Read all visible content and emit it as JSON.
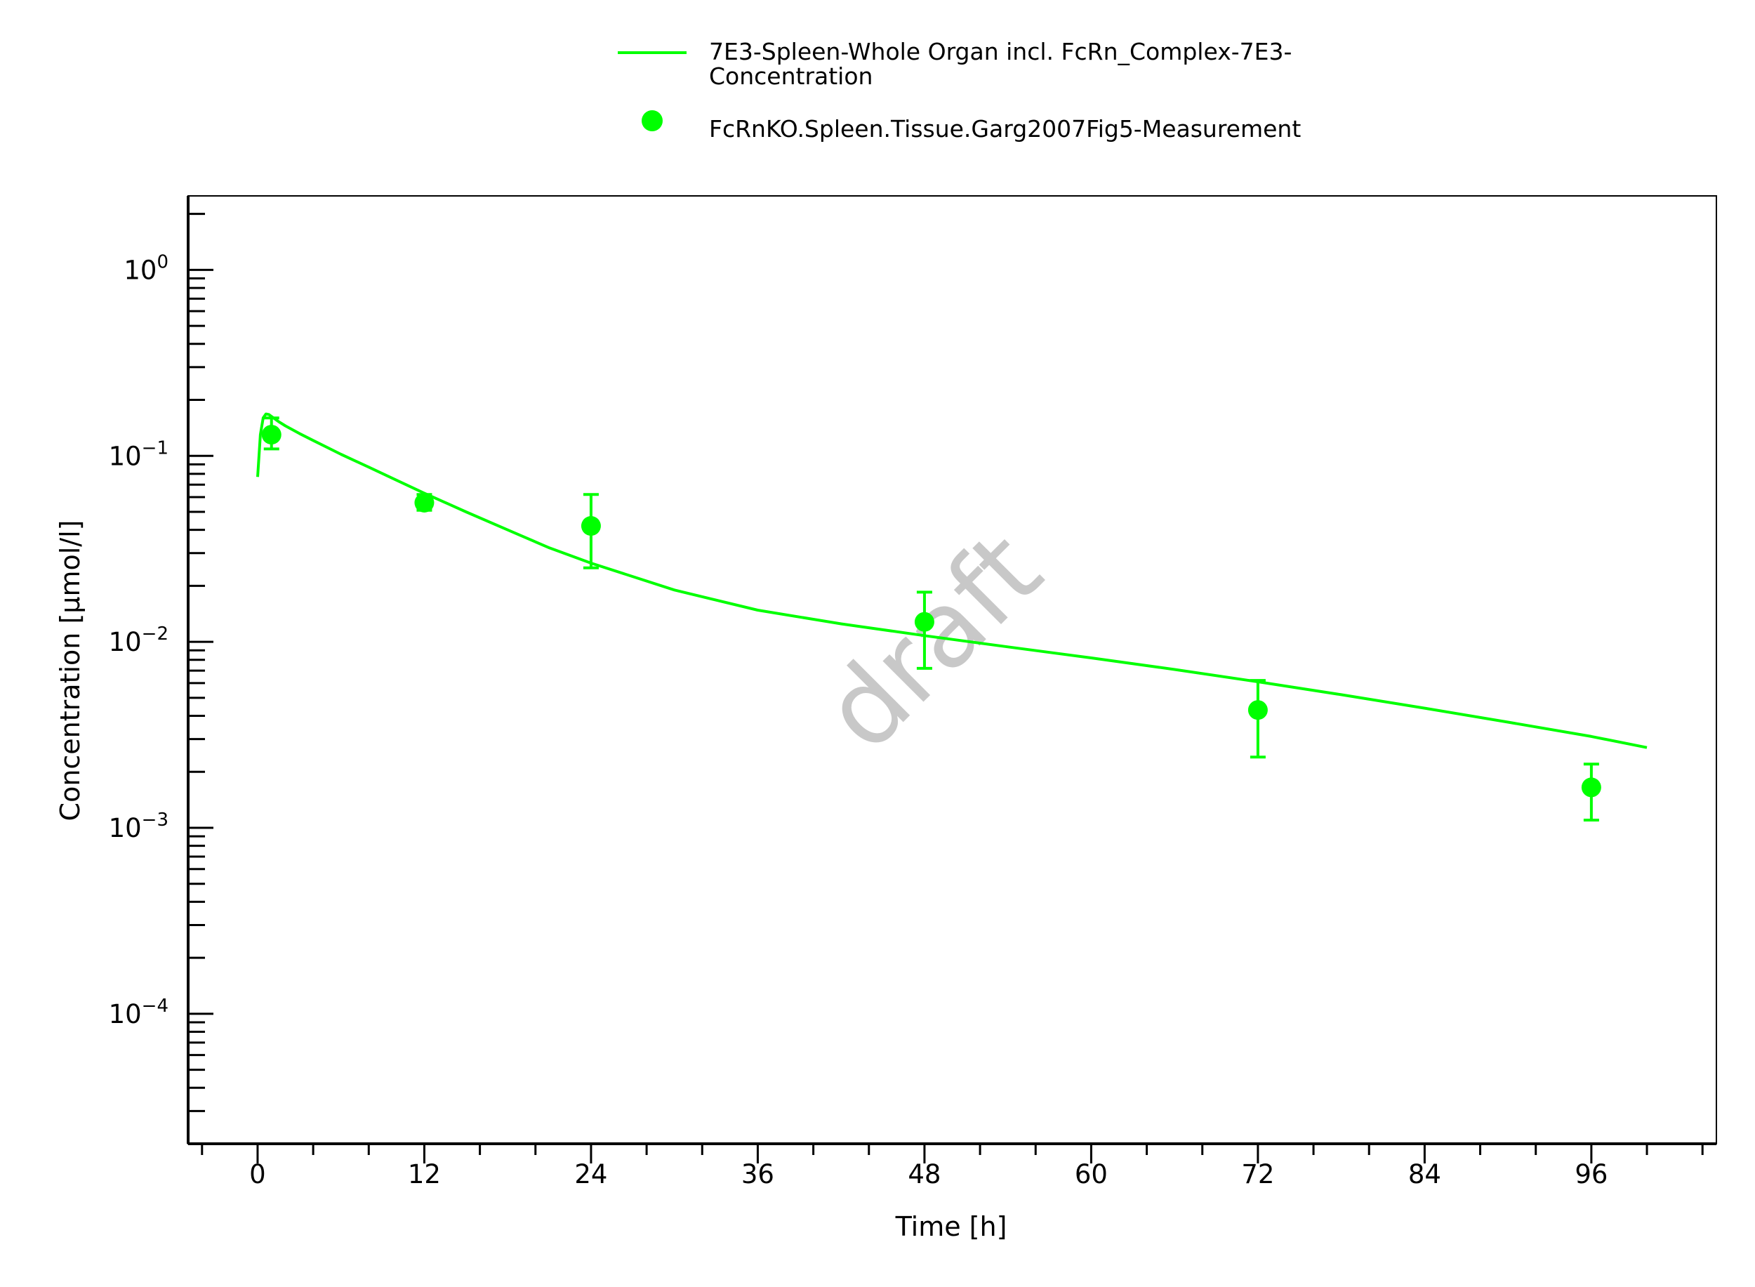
{
  "chart_data": {
    "type": "line",
    "xlabel": "Time [h]",
    "ylabel": "Concentration [µmol/l]",
    "watermark": "draft",
    "xlim": [
      -5,
      105
    ],
    "ylim": [
      2e-05,
      2.5
    ],
    "y_scale": "log",
    "grid": false,
    "legend_position": "top-center",
    "x_ticks": [
      0,
      12,
      24,
      36,
      48,
      60,
      72,
      84,
      96
    ],
    "y_ticks": [
      {
        "value": 1,
        "base": "10",
        "exp": "0"
      },
      {
        "value": 0.1,
        "base": "10",
        "exp": "−1"
      },
      {
        "value": 0.01,
        "base": "10",
        "exp": "−2"
      },
      {
        "value": 0.001,
        "base": "10",
        "exp": "−3"
      },
      {
        "value": 0.0001,
        "base": "10",
        "exp": "−4"
      }
    ],
    "series": [
      {
        "name": "7E3-Spleen-Whole Organ incl. FcRn_Complex-7E3-Concentration",
        "legend_lines": [
          "7E3-Spleen-Whole Organ incl. FcRn_Complex-7E3-",
          "Concentration"
        ],
        "kind": "line",
        "color": "#00ff00",
        "x": [
          0,
          0.2,
          0.4,
          0.6,
          0.8,
          1.0,
          1.5,
          2,
          3,
          4,
          6,
          8,
          10,
          12,
          15,
          18,
          21,
          24,
          30,
          36,
          42,
          48,
          54,
          60,
          66,
          72,
          78,
          84,
          90,
          96,
          100
        ],
        "y": [
          0.077,
          0.13,
          0.16,
          0.168,
          0.167,
          0.163,
          0.153,
          0.145,
          0.132,
          0.121,
          0.102,
          0.087,
          0.074,
          0.063,
          0.05,
          0.04,
          0.032,
          0.0265,
          0.019,
          0.0148,
          0.0125,
          0.0108,
          0.0094,
          0.0082,
          0.0071,
          0.0061,
          0.0052,
          0.0044,
          0.0037,
          0.0031,
          0.0027
        ]
      },
      {
        "name": "FcRnKO.Spleen.Tissue.Garg2007Fig5-Measurement",
        "kind": "scatter",
        "color": "#00ff00",
        "points": [
          {
            "x": 1,
            "y": 0.13,
            "err_low": 0.109,
            "err_high": 0.16
          },
          {
            "x": 12,
            "y": 0.056,
            "err_low": 0.051,
            "err_high": 0.062
          },
          {
            "x": 24,
            "y": 0.042,
            "err_low": 0.025,
            "err_high": 0.062
          },
          {
            "x": 48,
            "y": 0.0128,
            "err_low": 0.0072,
            "err_high": 0.0185
          },
          {
            "x": 72,
            "y": 0.0043,
            "err_low": 0.0024,
            "err_high": 0.0062
          },
          {
            "x": 96,
            "y": 0.00165,
            "err_low": 0.0011,
            "err_high": 0.0022
          }
        ]
      }
    ]
  }
}
